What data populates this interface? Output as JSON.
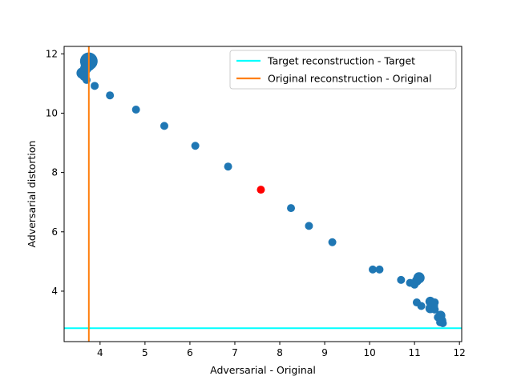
{
  "chart_data": {
    "type": "scatter",
    "title": "",
    "xlabel": "Adversarial - Original",
    "ylabel": "Adversarial distortion",
    "xlim": [
      3.2,
      12.05
    ],
    "ylim": [
      2.3,
      12.25
    ],
    "xticks": [
      4,
      5,
      6,
      7,
      8,
      9,
      10,
      11,
      12
    ],
    "yticks": [
      4,
      6,
      8,
      10,
      12
    ],
    "grid": false,
    "legend_position": "top-right",
    "colors": {
      "points": "#1f77b4",
      "highlight": "#ff0000",
      "target_line": "#00ffff",
      "original_line": "#ff7f0e"
    },
    "points": [
      {
        "x": 3.75,
        "y": 11.75,
        "size": 11
      },
      {
        "x": 3.73,
        "y": 11.65,
        "size": 9
      },
      {
        "x": 3.68,
        "y": 11.5,
        "size": 7
      },
      {
        "x": 3.6,
        "y": 11.35,
        "size": 7
      },
      {
        "x": 3.65,
        "y": 11.25,
        "size": 6
      },
      {
        "x": 3.7,
        "y": 11.12,
        "size": 5
      },
      {
        "x": 3.88,
        "y": 10.92,
        "size": 5
      },
      {
        "x": 4.22,
        "y": 10.6,
        "size": 5
      },
      {
        "x": 4.8,
        "y": 10.12,
        "size": 5
      },
      {
        "x": 5.43,
        "y": 9.57,
        "size": 5
      },
      {
        "x": 6.12,
        "y": 8.9,
        "size": 5
      },
      {
        "x": 6.85,
        "y": 8.2,
        "size": 5
      },
      {
        "x": 8.25,
        "y": 6.8,
        "size": 5
      },
      {
        "x": 8.65,
        "y": 6.2,
        "size": 5
      },
      {
        "x": 9.17,
        "y": 5.65,
        "size": 5
      },
      {
        "x": 10.07,
        "y": 4.73,
        "size": 5
      },
      {
        "x": 10.22,
        "y": 4.73,
        "size": 5
      },
      {
        "x": 10.7,
        "y": 4.38,
        "size": 5
      },
      {
        "x": 10.9,
        "y": 4.28,
        "size": 5
      },
      {
        "x": 11.0,
        "y": 4.22,
        "size": 5
      },
      {
        "x": 11.05,
        "y": 4.35,
        "size": 6
      },
      {
        "x": 11.1,
        "y": 4.45,
        "size": 7
      },
      {
        "x": 11.05,
        "y": 3.62,
        "size": 5
      },
      {
        "x": 11.15,
        "y": 3.5,
        "size": 5
      },
      {
        "x": 11.35,
        "y": 3.65,
        "size": 6
      },
      {
        "x": 11.45,
        "y": 3.62,
        "size": 5
      },
      {
        "x": 11.4,
        "y": 3.5,
        "size": 7
      },
      {
        "x": 11.35,
        "y": 3.42,
        "size": 6
      },
      {
        "x": 11.45,
        "y": 3.38,
        "size": 5
      },
      {
        "x": 11.52,
        "y": 3.12,
        "size": 5
      },
      {
        "x": 11.58,
        "y": 3.18,
        "size": 6
      },
      {
        "x": 11.6,
        "y": 3.0,
        "size": 6
      },
      {
        "x": 11.63,
        "y": 2.92,
        "size": 5
      },
      {
        "x": 11.57,
        "y": 2.95,
        "size": 5
      }
    ],
    "highlight_point": {
      "x": 7.58,
      "y": 7.42
    },
    "reference_lines": [
      {
        "name": "Target reconstruction - Target",
        "orientation": "horizontal",
        "value": 2.75,
        "color": "#00ffff"
      },
      {
        "name": "Original reconstruction - Original",
        "orientation": "vertical",
        "value": 3.75,
        "color": "#ff7f0e"
      }
    ]
  }
}
